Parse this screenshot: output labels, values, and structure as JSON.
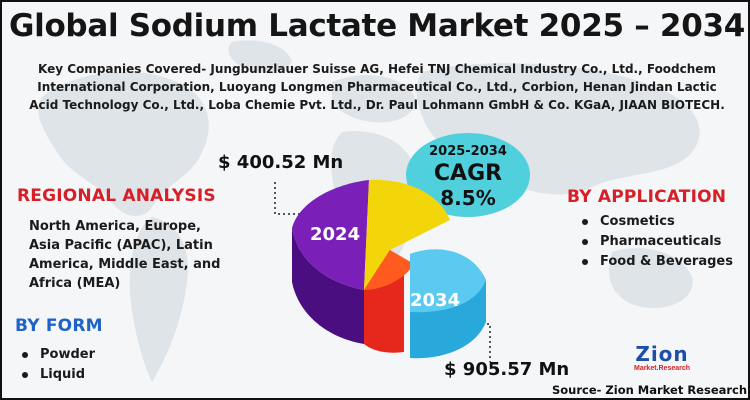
{
  "title": "Global Sodium Lactate Market 2025 – 2034",
  "companies": "Key Companies Covered- Jungbunzlauer Suisse AG, Hefei TNJ Chemical Industry Co., Ltd., Foodchem International Corporation, Luoyang Longmen Pharmaceutical Co., Ltd., Corbion, Henan Jindan Lactic Acid Technology Co., Ltd., Loba Chemie Pvt. Ltd., Dr. Paul Lohmann GmbH & Co. KGaA, JIAAN BIOTECH.",
  "regional": {
    "heading": "REGIONAL ANALYSIS",
    "text": "North America, Europe, Asia Pacific (APAC), Latin America, Middle East, and Africa (MEA)"
  },
  "form": {
    "heading": "BY FORM",
    "items": [
      "Powder",
      "Liquid"
    ]
  },
  "application": {
    "heading": "BY  APPLICATION",
    "items": [
      "Cosmetics",
      "Pharmaceuticals",
      "Food & Beverages"
    ]
  },
  "cagr": {
    "years": "2025-2034",
    "label": "CAGR",
    "value": "8.5%"
  },
  "market": {
    "value_2024": "$ 400.52 Mn",
    "value_2034": "$ 905.57 Mn",
    "year_2024": "2024",
    "year_2034": "2034"
  },
  "logo": {
    "main": "Zion",
    "sub": "Market.Research"
  },
  "source": "Source- Zion Market Research",
  "colors": {
    "red_heading": "#d61f26",
    "blue_heading": "#1e63c8",
    "cagr_bubble": "#4fd0dc",
    "pie_purple": "#7a1fb8",
    "pie_yellow": "#f2d60a",
    "pie_red": "#e5271c",
    "pie_blue": "#29a8dc"
  }
}
